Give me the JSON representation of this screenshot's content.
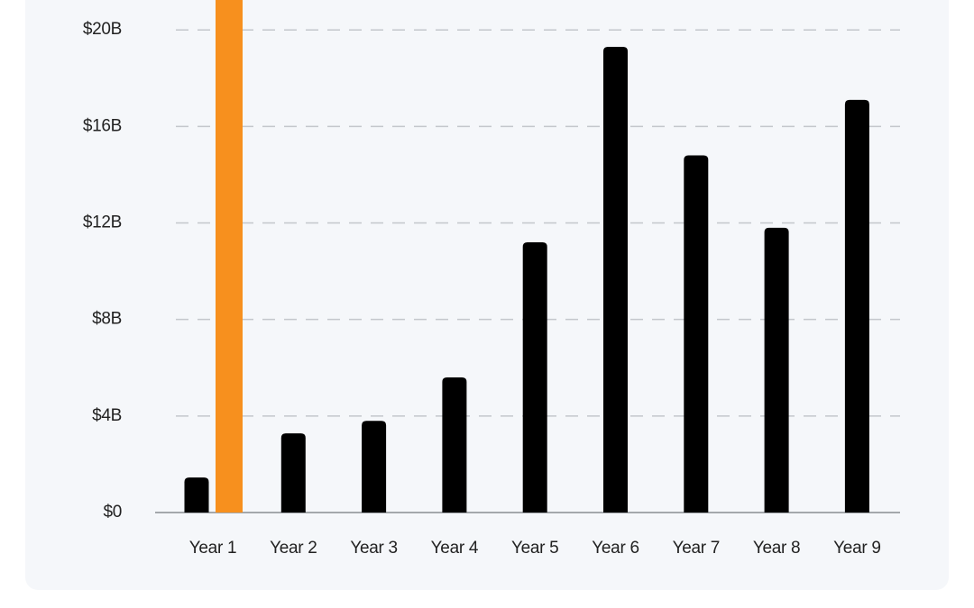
{
  "chart_data": {
    "type": "bar",
    "categories": [
      "Year 1",
      "Year 2",
      "Year 3",
      "Year 4",
      "Year 5",
      "Year 6",
      "Year 7",
      "Year 8",
      "Year 9"
    ],
    "series": [
      {
        "color": "#000000",
        "values": [
          1.45,
          3.28,
          3.8,
          5.6,
          11.2,
          19.3,
          14.8,
          11.8,
          17.1
        ]
      },
      {
        "color": "#f7901e",
        "values": [
          21.24,
          null,
          null,
          null,
          null,
          null,
          null,
          null,
          null
        ]
      }
    ],
    "ylim": [
      0,
      21.24
    ],
    "yticks": [
      {
        "value": 0,
        "label": "$0"
      },
      {
        "value": 4,
        "label": "$4B"
      },
      {
        "value": 8,
        "label": "$8B"
      },
      {
        "value": 12,
        "label": "$12B"
      },
      {
        "value": 16,
        "label": "$16B"
      },
      {
        "value": 20,
        "label": "$20B"
      }
    ],
    "grid": true
  }
}
